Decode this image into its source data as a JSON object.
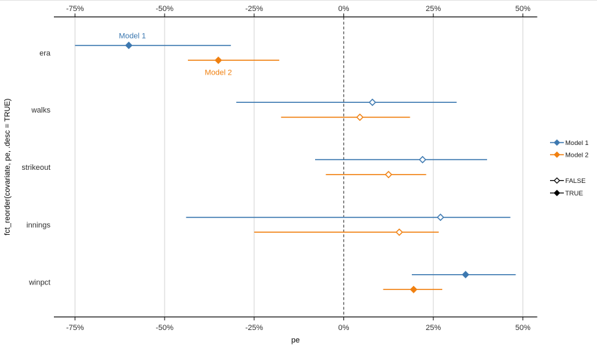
{
  "chart_data": {
    "type": "pointrange-forest",
    "title": "",
    "xlabel": "pe",
    "ylabel": "fct_reorder(covariate, pe, .desc = TRUE)",
    "x_axis": {
      "ticks": [
        {
          "label": "-75%",
          "value": -75
        },
        {
          "label": "-50%",
          "value": -50
        },
        {
          "label": "-25%",
          "value": -25
        },
        {
          "label": "0%",
          "value": 0
        },
        {
          "label": "25%",
          "value": 25
        },
        {
          "label": "50%",
          "value": 50
        }
      ],
      "xlim": [
        -80.9,
        54.0
      ],
      "duplicated_on_top": true,
      "unit": "percent"
    },
    "grid": "vertical-major-only",
    "zero_reference_line": {
      "x": 0,
      "style": "dashed",
      "color": "#4a4a4a"
    },
    "categories": [
      "era",
      "walks",
      "strikeout",
      "innings",
      "winpct"
    ],
    "series": [
      {
        "name": "Model 1",
        "color": "#3c78b0",
        "points": [
          {
            "category": "era",
            "low": -75,
            "mid": -60,
            "high": -31.5,
            "filled": true
          },
          {
            "category": "walks",
            "low": -30,
            "mid": 8,
            "high": 31.5,
            "filled": false
          },
          {
            "category": "strikeout",
            "low": -8,
            "mid": 22,
            "high": 40,
            "filled": false
          },
          {
            "category": "innings",
            "low": -44,
            "mid": 27,
            "high": 46.5,
            "filled": false
          },
          {
            "category": "winpct",
            "low": 19,
            "mid": 34,
            "high": 48,
            "filled": true
          }
        ]
      },
      {
        "name": "Model 2",
        "color": "#f08010",
        "points": [
          {
            "category": "era",
            "low": -43.5,
            "mid": -35,
            "high": -18,
            "filled": true
          },
          {
            "category": "walks",
            "low": -17.5,
            "mid": 4.5,
            "high": 18.5,
            "filled": false
          },
          {
            "category": "strikeout",
            "low": -5,
            "mid": 12.5,
            "high": 23,
            "filled": false
          },
          {
            "category": "innings",
            "low": -25,
            "mid": 15.5,
            "high": 26.5,
            "filled": false
          },
          {
            "category": "winpct",
            "low": 11,
            "mid": 19.5,
            "high": 27.5,
            "filled": true
          }
        ]
      }
    ],
    "annotations": [
      {
        "text": "Model 1",
        "x": -59,
        "category": "era",
        "series": 0,
        "dy": -10
      },
      {
        "text": "Model 2",
        "x": -35,
        "category": "era",
        "series": 1,
        "dy": 21
      }
    ],
    "legend": {
      "position": "right",
      "color_items": [
        {
          "label": "Model 1",
          "color": "#3c78b0"
        },
        {
          "label": "Model 2",
          "color": "#f08010"
        }
      ],
      "shape_items": [
        {
          "label": "FALSE",
          "filled": false,
          "color": "#000000"
        },
        {
          "label": "TRUE",
          "filled": true,
          "color": "#000000"
        }
      ]
    },
    "point_shape": "diamond",
    "colors": {
      "gridline": "#d5d5d5",
      "axis_line": "#111111",
      "tick_text": "#303030",
      "legend_text": "#1a1a1a"
    }
  }
}
